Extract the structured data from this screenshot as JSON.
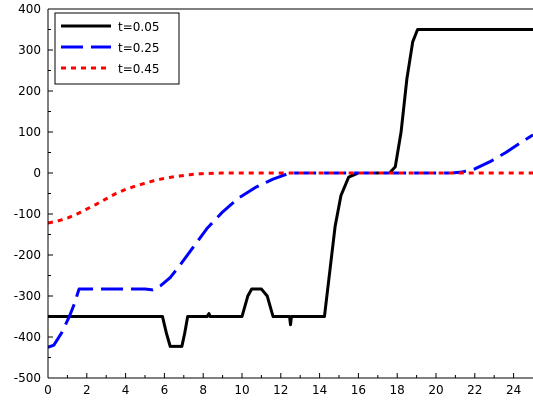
{
  "chart_data": {
    "type": "line",
    "title": "",
    "xlabel": "",
    "ylabel": "",
    "xlim": [
      0,
      25
    ],
    "ylim": [
      -500,
      400
    ],
    "x_ticks": [
      0,
      2,
      4,
      6,
      8,
      10,
      12,
      14,
      16,
      18,
      20,
      22,
      24
    ],
    "y_ticks": [
      -500,
      -400,
      -300,
      -200,
      -100,
      0,
      100,
      200,
      300,
      400
    ],
    "x_tick_labels": [
      "0",
      "2",
      "4",
      "6",
      "8",
      "10",
      "12",
      "14",
      "16",
      "18",
      "20",
      "22",
      "24"
    ],
    "y_tick_labels": [
      "-500",
      "-400",
      "-300",
      "-200",
      "-100",
      "0",
      "100",
      "200",
      "300",
      "400"
    ],
    "grid": false,
    "legend": "top-left",
    "series": [
      {
        "name": "t=0.05",
        "color": "#000000",
        "style": "solid",
        "points": [
          [
            0,
            -350
          ],
          [
            5.9,
            -350
          ],
          [
            6.1,
            -390
          ],
          [
            6.3,
            -423
          ],
          [
            6.9,
            -423
          ],
          [
            7.05,
            -390
          ],
          [
            7.2,
            -350
          ],
          [
            8.2,
            -350
          ],
          [
            8.3,
            -343
          ],
          [
            8.35,
            -350
          ],
          [
            10.0,
            -350
          ],
          [
            10.3,
            -300
          ],
          [
            10.5,
            -283
          ],
          [
            11.0,
            -283
          ],
          [
            11.3,
            -300
          ],
          [
            11.6,
            -350
          ],
          [
            12.45,
            -350
          ],
          [
            12.5,
            -370
          ],
          [
            12.55,
            -350
          ],
          [
            14.25,
            -350
          ],
          [
            14.5,
            -250
          ],
          [
            14.8,
            -130
          ],
          [
            15.1,
            -55
          ],
          [
            15.5,
            -10
          ],
          [
            16.0,
            0
          ],
          [
            17.6,
            0
          ],
          [
            17.9,
            15
          ],
          [
            18.2,
            100
          ],
          [
            18.5,
            230
          ],
          [
            18.8,
            320
          ],
          [
            19.05,
            350
          ],
          [
            25,
            350
          ]
        ]
      },
      {
        "name": "t=0.25",
        "color": "#0000ff",
        "style": "dashed",
        "points": [
          [
            0,
            -425
          ],
          [
            0.3,
            -420
          ],
          [
            0.7,
            -390
          ],
          [
            1.1,
            -350
          ],
          [
            1.35,
            -320
          ],
          [
            1.6,
            -283
          ],
          [
            2.2,
            -283
          ],
          [
            5.0,
            -283
          ],
          [
            5.4,
            -285
          ],
          [
            5.8,
            -275
          ],
          [
            6.3,
            -255
          ],
          [
            6.8,
            -225
          ],
          [
            7.5,
            -180
          ],
          [
            8.2,
            -135
          ],
          [
            9.0,
            -95
          ],
          [
            9.8,
            -62
          ],
          [
            10.7,
            -35
          ],
          [
            11.6,
            -15
          ],
          [
            12.3,
            -3
          ],
          [
            12.5,
            0
          ],
          [
            20.8,
            0
          ],
          [
            21.3,
            2
          ],
          [
            22.0,
            10
          ],
          [
            22.8,
            28
          ],
          [
            23.6,
            50
          ],
          [
            24.3,
            72
          ],
          [
            25,
            93
          ]
        ]
      },
      {
        "name": "t=0.45",
        "color": "#ff0000",
        "style": "dotted",
        "points": [
          [
            0,
            -122
          ],
          [
            0.5,
            -117
          ],
          [
            1.0,
            -110
          ],
          [
            1.5,
            -100
          ],
          [
            2.0,
            -88
          ],
          [
            2.5,
            -76
          ],
          [
            3.0,
            -63
          ],
          [
            3.5,
            -50
          ],
          [
            4.0,
            -40
          ],
          [
            4.5,
            -32
          ],
          [
            5.0,
            -25
          ],
          [
            5.5,
            -18
          ],
          [
            6.0,
            -13
          ],
          [
            6.5,
            -9
          ],
          [
            7.0,
            -6
          ],
          [
            7.5,
            -3
          ],
          [
            8.0,
            -1.5
          ],
          [
            9.0,
            0
          ],
          [
            10.0,
            0
          ],
          [
            25,
            0
          ]
        ]
      }
    ]
  }
}
